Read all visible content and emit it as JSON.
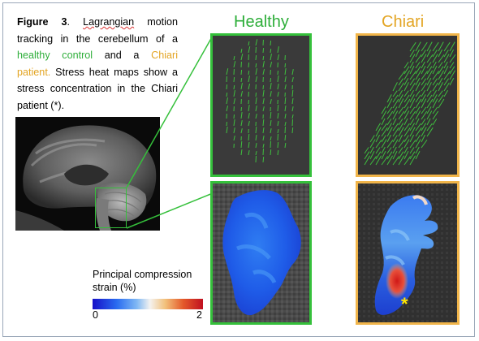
{
  "caption": {
    "figure_label": "Figure 3",
    "part1_squiggle": "Lagrangian",
    "part1": " motion tracking in the cerebellum of a ",
    "healthy_text": "healthy control",
    "part2": " and a ",
    "chiari_text": "Chiari patient.",
    "part3": " Stress heat maps show a stress concentration in the Chiari patient (*)."
  },
  "headers": {
    "healthy": "Healthy",
    "chiari": "Chiari"
  },
  "legend": {
    "title_line1": "Principal compression",
    "title_line2": "strain (%)",
    "min_label": "0",
    "max_label": "2"
  },
  "annotation": {
    "asterisk": "*"
  },
  "colors": {
    "healthy": "#2eae3a",
    "chiari": "#e3a524",
    "healthy_border": "#35c03b",
    "chiari_border": "#f1b54a",
    "vector_color": "#3fbf3f",
    "asterisk": "#ffe600"
  }
}
